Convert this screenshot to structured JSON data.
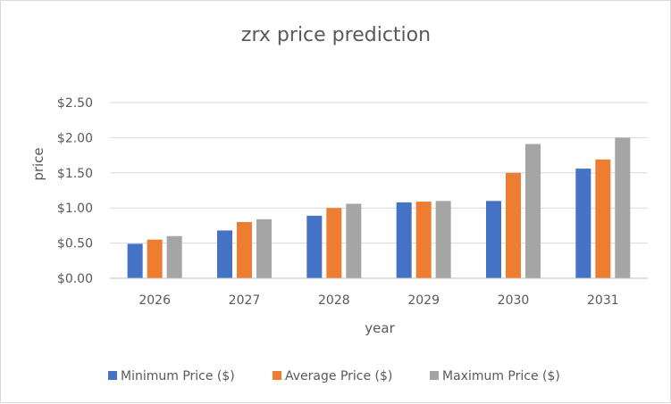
{
  "chart_data": {
    "type": "bar",
    "title": "zrx price prediction",
    "xlabel": "year",
    "ylabel": "price",
    "categories": [
      "2026",
      "2027",
      "2028",
      "2029",
      "2030",
      "2031"
    ],
    "series": [
      {
        "name": "Minimum Price ($)",
        "color": "#4472c4",
        "values": [
          0.49,
          0.68,
          0.89,
          1.08,
          1.1,
          1.56
        ]
      },
      {
        "name": "Average Price ($)",
        "color": "#ed7d31",
        "values": [
          0.55,
          0.8,
          1.0,
          1.09,
          1.5,
          1.69
        ]
      },
      {
        "name": "Maximum Price ($)",
        "color": "#a5a5a5",
        "values": [
          0.6,
          0.84,
          1.06,
          1.1,
          1.91,
          2.0
        ]
      }
    ],
    "ylim": [
      0,
      2.5
    ],
    "yticks": [
      0,
      0.5,
      1.0,
      1.5,
      2.0,
      2.5
    ],
    "ytick_labels": [
      "$0.00",
      "$0.50",
      "$1.00",
      "$1.50",
      "$2.00",
      "$2.50"
    ],
    "grid": true,
    "legend_position": "bottom"
  }
}
